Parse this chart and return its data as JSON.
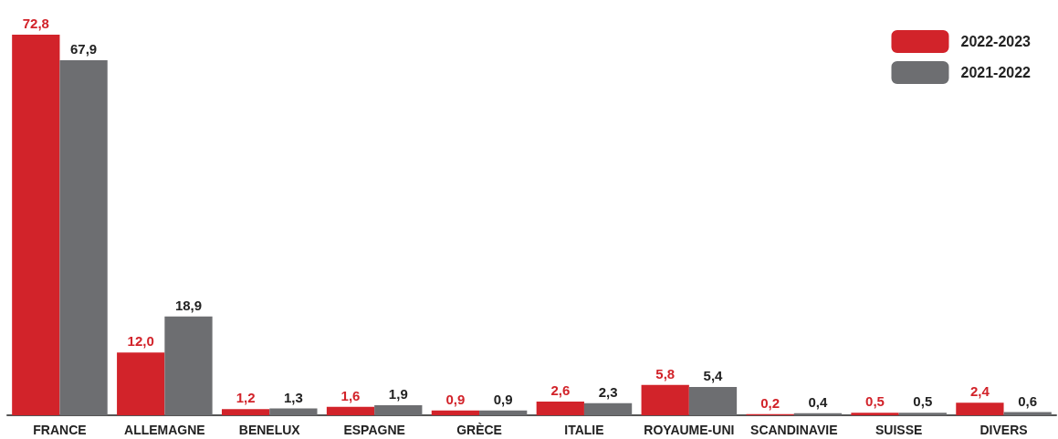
{
  "chart_data": {
    "type": "bar",
    "categories": [
      "FRANCE",
      "ALLEMAGNE",
      "BENELUX",
      "ESPAGNE",
      "GRÈCE",
      "ITALIE",
      "ROYAUME-UNI",
      "SCANDINAVIE",
      "SUISSE",
      "DIVERS"
    ],
    "series": [
      {
        "name": "2022-2023",
        "color": "#d2232a",
        "values": [
          72.8,
          12.0,
          1.2,
          1.6,
          0.9,
          2.6,
          5.8,
          0.2,
          0.5,
          2.4
        ],
        "value_labels": [
          "72,8",
          "12,0",
          "1,2",
          "1,6",
          "0,9",
          "2,6",
          "5,8",
          "0,2",
          "0,5",
          "2,4"
        ]
      },
      {
        "name": "2021-2022",
        "color": "#6d6e71",
        "values": [
          67.9,
          18.9,
          1.3,
          1.9,
          0.9,
          2.3,
          5.4,
          0.4,
          0.5,
          0.6
        ],
        "value_labels": [
          "67,9",
          "18,9",
          "1,3",
          "1,9",
          "0,9",
          "2,3",
          "5,4",
          "0,4",
          "0,5",
          "0,6"
        ]
      }
    ],
    "legend": "top right",
    "grid": false
  }
}
